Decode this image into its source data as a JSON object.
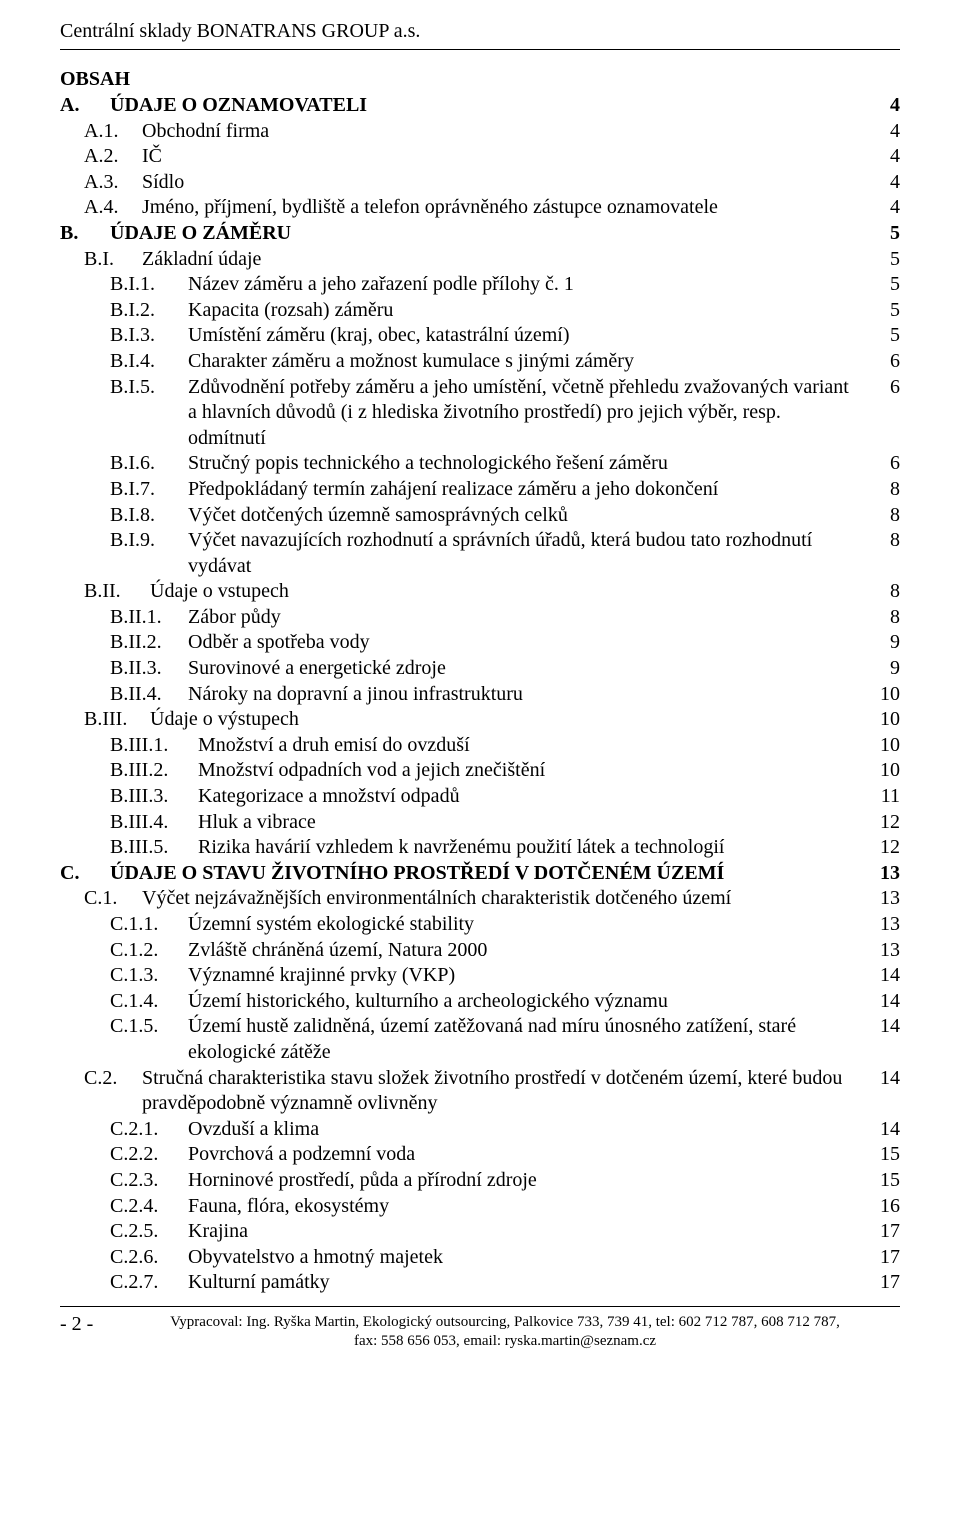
{
  "header": {
    "title": "Centrální sklady BONATRANS GROUP a.s."
  },
  "obsah_label": "OBSAH",
  "toc": [
    {
      "num_w": 50,
      "ind": 0,
      "num": "A.",
      "txt": "ÚDAJE O OZNAMOVATELI",
      "pg": "4",
      "bold": true,
      "pg_w": 50
    },
    {
      "num_w": 58,
      "ind": 24,
      "num": "A.1.",
      "txt": "Obchodní firma",
      "pg": "4",
      "bold": false
    },
    {
      "num_w": 58,
      "ind": 24,
      "num": "A.2.",
      "txt": "IČ",
      "pg": "4",
      "bold": false
    },
    {
      "num_w": 58,
      "ind": 24,
      "num": "A.3.",
      "txt": "Sídlo",
      "pg": "4",
      "bold": false
    },
    {
      "num_w": 58,
      "ind": 24,
      "num": "A.4.",
      "txt": "Jméno, příjmení, bydliště a telefon oprávněného zástupce oznamovatele",
      "pg": "4",
      "bold": false
    },
    {
      "num_w": 50,
      "ind": 0,
      "num": "B.",
      "txt": "ÚDAJE O ZÁMĚRU",
      "pg": "5",
      "bold": true,
      "pg_w": 50
    },
    {
      "num_w": 58,
      "ind": 24,
      "num": "B.I.",
      "txt": "Základní údaje",
      "pg": "5",
      "bold": false
    },
    {
      "num_w": 78,
      "ind": 50,
      "num": "B.I.1.",
      "txt": "Název záměru a jeho zařazení podle přílohy č. 1",
      "pg": "5",
      "bold": false
    },
    {
      "num_w": 78,
      "ind": 50,
      "num": "B.I.2.",
      "txt": "Kapacita (rozsah) záměru",
      "pg": "5",
      "bold": false
    },
    {
      "num_w": 78,
      "ind": 50,
      "num": "B.I.3.",
      "txt": "Umístění záměru (kraj, obec, katastrální území)",
      "pg": "5",
      "bold": false
    },
    {
      "num_w": 78,
      "ind": 50,
      "num": "B.I.4.",
      "txt": "Charakter záměru a možnost kumulace s jinými záměry",
      "pg": "6",
      "bold": false
    },
    {
      "num_w": 78,
      "ind": 50,
      "num": "B.I.5.",
      "txt": "Zdůvodnění potřeby záměru a jeho umístění, včetně přehledu zvažovaných variant a hlavních důvodů (i z hlediska životního prostředí) pro jejich výběr, resp. odmítnutí",
      "pg": "6",
      "bold": false,
      "hang": true
    },
    {
      "num_w": 78,
      "ind": 50,
      "num": "B.I.6.",
      "txt": "Stručný popis technického a technologického řešení záměru",
      "pg": "6",
      "bold": false
    },
    {
      "num_w": 78,
      "ind": 50,
      "num": "B.I.7.",
      "txt": "Předpokládaný termín zahájení realizace záměru a jeho dokončení",
      "pg": "8",
      "bold": false
    },
    {
      "num_w": 78,
      "ind": 50,
      "num": "B.I.8.",
      "txt": "Výčet dotčených územně samosprávných celků",
      "pg": "8",
      "bold": false
    },
    {
      "num_w": 78,
      "ind": 50,
      "num": "B.I.9.",
      "txt": "Výčet navazujících rozhodnutí a správních úřadů, která budou tato rozhodnutí vydávat",
      "pg": "8",
      "bold": false,
      "hang": true
    },
    {
      "num_w": 66,
      "ind": 24,
      "num": "B.II.",
      "txt": "Údaje o vstupech",
      "pg": "8",
      "bold": false
    },
    {
      "num_w": 78,
      "ind": 50,
      "num": "B.II.1.",
      "txt": "Zábor půdy",
      "pg": "8",
      "bold": false
    },
    {
      "num_w": 78,
      "ind": 50,
      "num": "B.II.2.",
      "txt": "Odběr a spotřeba vody",
      "pg": "9",
      "bold": false
    },
    {
      "num_w": 78,
      "ind": 50,
      "num": "B.II.3.",
      "txt": "Surovinové a energetické zdroje",
      "pg": "9",
      "bold": false
    },
    {
      "num_w": 78,
      "ind": 50,
      "num": "B.II.4.",
      "txt": "Nároky na dopravní a jinou infrastrukturu",
      "pg": "10",
      "bold": false
    },
    {
      "num_w": 66,
      "ind": 24,
      "num": "B.III.",
      "txt": "Údaje o výstupech",
      "pg": "10",
      "bold": false
    },
    {
      "num_w": 88,
      "ind": 50,
      "num": "B.III.1.",
      "txt": "Množství a druh emisí do ovzduší",
      "pg": "10",
      "bold": false
    },
    {
      "num_w": 88,
      "ind": 50,
      "num": "B.III.2.",
      "txt": "Množství odpadních vod a jejich znečištění",
      "pg": "10",
      "bold": false
    },
    {
      "num_w": 88,
      "ind": 50,
      "num": "B.III.3.",
      "txt": "Kategorizace a množství odpadů",
      "pg": "11",
      "bold": false
    },
    {
      "num_w": 88,
      "ind": 50,
      "num": "B.III.4.",
      "txt": "Hluk a vibrace",
      "pg": "12",
      "bold": false
    },
    {
      "num_w": 88,
      "ind": 50,
      "num": "B.III.5.",
      "txt": "Rizika havárií vzhledem k navrženému použití látek a technologií",
      "pg": "12",
      "bold": false
    },
    {
      "num_w": 50,
      "ind": 0,
      "num": "C.",
      "txt": "ÚDAJE O STAVU ŽIVOTNÍHO PROSTŘEDÍ V DOTČENÉM ÚZEMÍ",
      "pg": "13",
      "bold": true,
      "pg_w": 50
    },
    {
      "num_w": 58,
      "ind": 24,
      "num": "C.1.",
      "txt": "Výčet nejzávažnějších environmentálních charakteristik dotčeného území",
      "pg": "13",
      "bold": false
    },
    {
      "num_w": 78,
      "ind": 50,
      "num": "C.1.1.",
      "txt": "Územní systém ekologické stability",
      "pg": "13",
      "bold": false
    },
    {
      "num_w": 78,
      "ind": 50,
      "num": "C.1.2.",
      "txt": "Zvláště chráněná území, Natura 2000",
      "pg": "13",
      "bold": false
    },
    {
      "num_w": 78,
      "ind": 50,
      "num": "C.1.3.",
      "txt": "Významné krajinné prvky (VKP)",
      "pg": "14",
      "bold": false
    },
    {
      "num_w": 78,
      "ind": 50,
      "num": "C.1.4.",
      "txt": "Území historického, kulturního a archeologického významu",
      "pg": "14",
      "bold": false
    },
    {
      "num_w": 78,
      "ind": 50,
      "num": "C.1.5.",
      "txt": "Území hustě zalidněná, území zatěžovaná nad míru únosného zatížení, staré ekologické zátěže",
      "pg": "14",
      "bold": false,
      "hang": true
    },
    {
      "num_w": 58,
      "ind": 24,
      "num": "C.2.",
      "txt": "Stručná charakteristika stavu složek životního prostředí v dotčeném území, které budou pravděpodobně významně ovlivněny",
      "pg": "14",
      "bold": false,
      "hang": true,
      "hang_ind": 128
    },
    {
      "num_w": 78,
      "ind": 50,
      "num": "C.2.1.",
      "txt": "Ovzduší a klima",
      "pg": "14",
      "bold": false
    },
    {
      "num_w": 78,
      "ind": 50,
      "num": "C.2.2.",
      "txt": "Povrchová a podzemní voda",
      "pg": "15",
      "bold": false
    },
    {
      "num_w": 78,
      "ind": 50,
      "num": "C.2.3.",
      "txt": "Horninové prostředí, půda a přírodní zdroje",
      "pg": "15",
      "bold": false
    },
    {
      "num_w": 78,
      "ind": 50,
      "num": "C.2.4.",
      "txt": "Fauna, flóra, ekosystémy",
      "pg": "16",
      "bold": false
    },
    {
      "num_w": 78,
      "ind": 50,
      "num": "C.2.5.",
      "txt": "Krajina",
      "pg": "17",
      "bold": false
    },
    {
      "num_w": 78,
      "ind": 50,
      "num": "C.2.6.",
      "txt": "Obyvatelstvo a hmotný majetek",
      "pg": "17",
      "bold": false
    },
    {
      "num_w": 78,
      "ind": 50,
      "num": "C.2.7.",
      "txt": "Kulturní památky",
      "pg": "17",
      "bold": false
    }
  ],
  "footer": {
    "page_num": "- 2 -",
    "line1": "Vypracoval: Ing. Ryška Martin, Ekologický outsourcing, Palkovice 733, 739 41, tel: 602 712 787, 608 712 787,",
    "line2": "fax: 558 656 053, email: ryska.martin@seznam.cz"
  }
}
